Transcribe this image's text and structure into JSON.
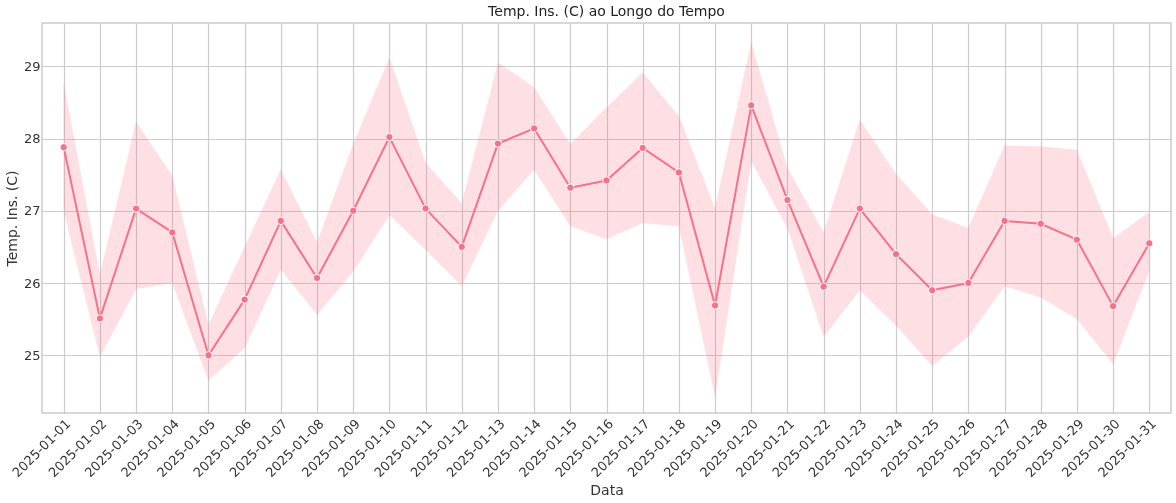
{
  "chart_data": {
    "type": "line",
    "title": "Temp. Ins. (C) ao Longo do Tempo",
    "xlabel": "Data",
    "ylabel": "Temp. Ins. (C)",
    "categories": [
      "2025-01-01",
      "2025-01-02",
      "2025-01-03",
      "2025-01-04",
      "2025-01-05",
      "2025-01-06",
      "2025-01-07",
      "2025-01-08",
      "2025-01-09",
      "2025-01-10",
      "2025-01-11",
      "2025-01-12",
      "2025-01-13",
      "2025-01-14",
      "2025-01-15",
      "2025-01-16",
      "2025-01-17",
      "2025-01-18",
      "2025-01-19",
      "2025-01-20",
      "2025-01-21",
      "2025-01-22",
      "2025-01-23",
      "2025-01-24",
      "2025-01-25",
      "2025-01-26",
      "2025-01-27",
      "2025-01-28",
      "2025-01-29",
      "2025-01-30",
      "2025-01-31"
    ],
    "series": [
      {
        "color": "#f7718a",
        "values": [
          27.88,
          25.51,
          27.03,
          26.7,
          25.0,
          25.77,
          26.86,
          26.07,
          27.0,
          28.02,
          27.03,
          26.5,
          27.93,
          28.14,
          27.32,
          27.42,
          27.87,
          27.53,
          25.69,
          28.46,
          27.15,
          25.95,
          27.03,
          26.4,
          25.9,
          26.0,
          26.86,
          26.82,
          26.6,
          25.68,
          26.55
        ],
        "lower": [
          27.0,
          24.98,
          25.92,
          26.0,
          24.65,
          25.1,
          26.19,
          25.56,
          26.16,
          26.94,
          26.46,
          25.96,
          27.0,
          27.57,
          26.79,
          26.61,
          26.83,
          26.79,
          24.43,
          27.69,
          26.76,
          25.26,
          25.9,
          25.41,
          24.85,
          25.26,
          25.96,
          25.8,
          25.5,
          24.88,
          26.17
        ],
        "upper": [
          28.76,
          26.11,
          28.23,
          27.48,
          25.42,
          26.5,
          27.57,
          26.56,
          27.92,
          29.12,
          27.66,
          27.1,
          29.05,
          28.71,
          27.92,
          28.43,
          28.91,
          28.31,
          27.03,
          29.33,
          27.59,
          26.7,
          28.26,
          27.51,
          26.95,
          26.76,
          27.9,
          27.89,
          27.84,
          26.62,
          26.98
        ]
      }
    ],
    "ylim": [
      24.2,
      29.6
    ],
    "yticks": [
      25,
      26,
      27,
      28,
      29
    ],
    "grid": true,
    "marker": "circle",
    "line_style": "solid"
  }
}
